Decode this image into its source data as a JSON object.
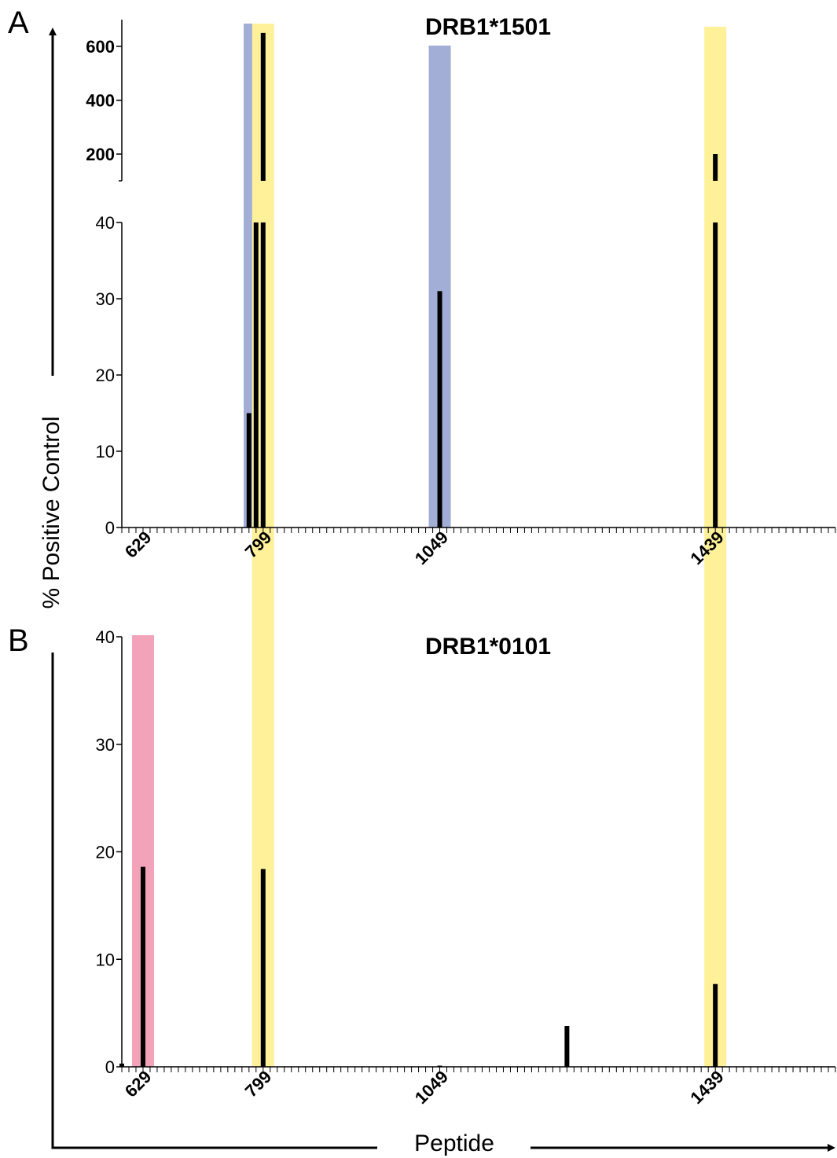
{
  "figure": {
    "y_axis_label": "% Positive Control",
    "x_axis_label": "Peptide"
  },
  "chart_data": [
    {
      "type": "bar",
      "panel": "A",
      "title": "DRB1*1501",
      "ylabel": "% Positive Control",
      "y_axis": {
        "broken": true,
        "lower_segment": {
          "ylim": [
            0,
            40
          ],
          "ticks": [
            0,
            10,
            20,
            30,
            40
          ]
        },
        "upper_segment": {
          "ylim": [
            100,
            660
          ],
          "ticks": [
            200,
            400,
            600
          ]
        }
      },
      "x_ticks": [
        "629",
        "799",
        "1049",
        "1439"
      ],
      "highlight_bands": [
        {
          "peptide": 799,
          "color": "#a3aed6",
          "label_color": "blue",
          "offset": -1.2
        },
        {
          "peptide": 799,
          "color": "#fff19a",
          "label_color": "yellow",
          "offset": 0
        },
        {
          "peptide": 1049,
          "color": "#a3aed6",
          "label_color": "blue",
          "offset": 0
        },
        {
          "peptide": 1439,
          "color": "#fff19a",
          "label_color": "yellow",
          "offset": 0
        }
      ],
      "bars": [
        {
          "peptide": 799,
          "offset": -2,
          "value": 15,
          "note": ""
        },
        {
          "peptide": 799,
          "offset": -1,
          "value": 40,
          "note": ""
        },
        {
          "peptide": 799,
          "offset": 0,
          "value": 650,
          "note": ""
        },
        {
          "peptide": 1049,
          "offset": 0,
          "value": 31,
          "note": ""
        },
        {
          "peptide": 1439,
          "offset": 0,
          "value": 200,
          "note": ""
        }
      ]
    },
    {
      "type": "bar",
      "panel": "B",
      "title": "DRB1*0101",
      "y_axis": {
        "broken": false,
        "ylim": [
          0,
          40
        ],
        "ticks": [
          0,
          10,
          20,
          30,
          40
        ]
      },
      "x_ticks": [
        "629",
        "799",
        "1049",
        "1439"
      ],
      "highlight_bands": [
        {
          "peptide": 629,
          "color": "#f2a2b9",
          "label_color": "pink",
          "offset": 0
        },
        {
          "peptide": 799,
          "color": "#fff19a",
          "label_color": "yellow",
          "offset": 0
        },
        {
          "peptide": 1439,
          "color": "#fff19a",
          "label_color": "yellow",
          "offset": 0
        }
      ],
      "bars": [
        {
          "peptide": 599,
          "offset": 0,
          "value": 0.3
        },
        {
          "peptide": 629,
          "offset": 0,
          "value": 18.6
        },
        {
          "peptide": 799,
          "offset": 0,
          "value": 18.4
        },
        {
          "peptide": 1049,
          "offset": 0,
          "value": 0.1
        },
        {
          "peptide": 1229,
          "offset": 0,
          "value": 3.8
        },
        {
          "peptide": 1439,
          "offset": 0,
          "value": 7.7
        }
      ]
    }
  ],
  "colors": {
    "blue_band": "#a3aed6",
    "yellow_band": "#fff19a",
    "pink_band": "#f2a2b9",
    "bar": "#000000"
  }
}
